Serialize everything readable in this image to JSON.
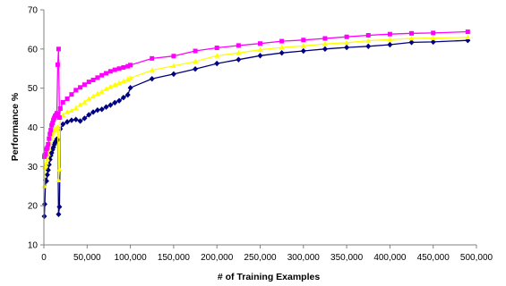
{
  "chart_data": {
    "type": "line",
    "title": "",
    "xlabel": "# of Training Examples",
    "ylabel": "Performance %",
    "xlim": [
      0,
      500000
    ],
    "ylim": [
      10,
      70
    ],
    "x_ticks": [
      0,
      50000,
      100000,
      150000,
      200000,
      250000,
      300000,
      350000,
      400000,
      450000,
      500000
    ],
    "x_tick_labels": [
      "0",
      "50,000",
      "100,000",
      "150,000",
      "200,000",
      "250,000",
      "300,000",
      "350,000",
      "400,000",
      "450,000",
      "500,000"
    ],
    "y_ticks": [
      10,
      20,
      30,
      40,
      50,
      60,
      70
    ],
    "y_tick_labels": [
      "10",
      "20",
      "30",
      "40",
      "50",
      "60",
      "70"
    ],
    "grid": false,
    "legend": "none",
    "series": [
      {
        "color": "#ff00ff",
        "marker": "square",
        "points": [
          [
            500,
            32.5
          ],
          [
            1000,
            32.9
          ],
          [
            2000,
            33.2
          ],
          [
            3000,
            34.4
          ],
          [
            4000,
            34.8
          ],
          [
            5000,
            35.7
          ],
          [
            6000,
            37.1
          ],
          [
            7000,
            38.3
          ],
          [
            8000,
            39.3
          ],
          [
            9000,
            40.5
          ],
          [
            10000,
            41.1
          ],
          [
            11000,
            41.9
          ],
          [
            12000,
            42.4
          ],
          [
            13000,
            42.9
          ],
          [
            14000,
            43.1
          ],
          [
            15000,
            43.6
          ],
          [
            16000,
            56.0
          ],
          [
            17000,
            60.0
          ],
          [
            18000,
            42.5
          ],
          [
            19000,
            44.8
          ],
          [
            22000,
            46.4
          ],
          [
            27000,
            47.3
          ],
          [
            32000,
            48.4
          ],
          [
            37000,
            49.5
          ],
          [
            42000,
            50.2
          ],
          [
            47000,
            50.9
          ],
          [
            52000,
            51.6
          ],
          [
            57000,
            52.1
          ],
          [
            62000,
            52.7
          ],
          [
            67000,
            53.3
          ],
          [
            72000,
            53.8
          ],
          [
            77000,
            54.3
          ],
          [
            82000,
            54.7
          ],
          [
            87000,
            55.0
          ],
          [
            92000,
            55.3
          ],
          [
            97000,
            55.6
          ],
          [
            100000,
            55.9
          ],
          [
            125000,
            57.6
          ],
          [
            150000,
            58.2
          ],
          [
            175000,
            59.5
          ],
          [
            200000,
            60.3
          ],
          [
            225000,
            60.9
          ],
          [
            250000,
            61.4
          ],
          [
            275000,
            62.0
          ],
          [
            300000,
            62.3
          ],
          [
            325000,
            62.7
          ],
          [
            350000,
            63.1
          ],
          [
            375000,
            63.5
          ],
          [
            400000,
            63.8
          ],
          [
            425000,
            64.0
          ],
          [
            450000,
            64.1
          ],
          [
            490000,
            64.4
          ]
        ]
      },
      {
        "color": "#ffff00",
        "marker": "triangle",
        "points": [
          [
            500,
            25.0
          ],
          [
            1000,
            29.8
          ],
          [
            2000,
            30.4
          ],
          [
            3000,
            31.0
          ],
          [
            4000,
            31.9
          ],
          [
            5000,
            33.2
          ],
          [
            6000,
            34.6
          ],
          [
            7000,
            36.0
          ],
          [
            8000,
            37.3
          ],
          [
            9000,
            38.1
          ],
          [
            10000,
            38.6
          ],
          [
            11000,
            39.1
          ],
          [
            12000,
            39.3
          ],
          [
            13000,
            39.5
          ],
          [
            14000,
            39.6
          ],
          [
            15000,
            39.8
          ],
          [
            16000,
            40.0
          ],
          [
            17000,
            26.5
          ],
          [
            18000,
            29.3
          ],
          [
            19000,
            42.5
          ],
          [
            22000,
            43.1
          ],
          [
            27000,
            43.9
          ],
          [
            32000,
            44.3
          ],
          [
            37000,
            44.9
          ],
          [
            42000,
            45.8
          ],
          [
            47000,
            46.4
          ],
          [
            52000,
            47.3
          ],
          [
            57000,
            47.9
          ],
          [
            62000,
            48.6
          ],
          [
            67000,
            49.1
          ],
          [
            72000,
            49.8
          ],
          [
            77000,
            50.4
          ],
          [
            82000,
            50.9
          ],
          [
            87000,
            51.3
          ],
          [
            92000,
            51.8
          ],
          [
            97000,
            52.3
          ],
          [
            100000,
            52.6
          ],
          [
            125000,
            54.6
          ],
          [
            150000,
            55.7
          ],
          [
            175000,
            56.8
          ],
          [
            200000,
            58.3
          ],
          [
            225000,
            59.0
          ],
          [
            250000,
            59.8
          ],
          [
            275000,
            60.4
          ],
          [
            300000,
            60.8
          ],
          [
            325000,
            61.3
          ],
          [
            350000,
            61.6
          ],
          [
            375000,
            62.1
          ],
          [
            400000,
            62.4
          ],
          [
            425000,
            62.7
          ],
          [
            450000,
            62.8
          ],
          [
            490000,
            63.0
          ]
        ]
      },
      {
        "color": "#000080",
        "marker": "diamond",
        "points": [
          [
            500,
            17.3
          ],
          [
            1000,
            20.4
          ],
          [
            2000,
            26.5
          ],
          [
            3000,
            26.3
          ],
          [
            4000,
            27.9
          ],
          [
            5000,
            29.1
          ],
          [
            6000,
            30.5
          ],
          [
            7000,
            31.8
          ],
          [
            8000,
            32.8
          ],
          [
            9000,
            33.5
          ],
          [
            10000,
            34.3
          ],
          [
            11000,
            34.9
          ],
          [
            12000,
            35.6
          ],
          [
            13000,
            36.1
          ],
          [
            14000,
            36.5
          ],
          [
            15000,
            37.0
          ],
          [
            16000,
            36.8
          ],
          [
            17000,
            17.8
          ],
          [
            18000,
            19.7
          ],
          [
            19000,
            39.6
          ],
          [
            22000,
            40.8
          ],
          [
            27000,
            41.4
          ],
          [
            32000,
            41.8
          ],
          [
            37000,
            42.0
          ],
          [
            42000,
            41.6
          ],
          [
            47000,
            42.3
          ],
          [
            52000,
            43.2
          ],
          [
            57000,
            43.9
          ],
          [
            62000,
            44.4
          ],
          [
            67000,
            44.6
          ],
          [
            72000,
            45.2
          ],
          [
            77000,
            45.7
          ],
          [
            82000,
            46.3
          ],
          [
            87000,
            46.8
          ],
          [
            92000,
            47.6
          ],
          [
            97000,
            48.3
          ],
          [
            100000,
            50.1
          ],
          [
            125000,
            52.4
          ],
          [
            150000,
            53.6
          ],
          [
            175000,
            54.9
          ],
          [
            200000,
            56.3
          ],
          [
            225000,
            57.3
          ],
          [
            250000,
            58.3
          ],
          [
            275000,
            59.0
          ],
          [
            300000,
            59.5
          ],
          [
            325000,
            60.0
          ],
          [
            350000,
            60.4
          ],
          [
            375000,
            60.7
          ],
          [
            400000,
            61.1
          ],
          [
            425000,
            61.7
          ],
          [
            450000,
            61.8
          ],
          [
            490000,
            62.2
          ]
        ]
      }
    ]
  }
}
